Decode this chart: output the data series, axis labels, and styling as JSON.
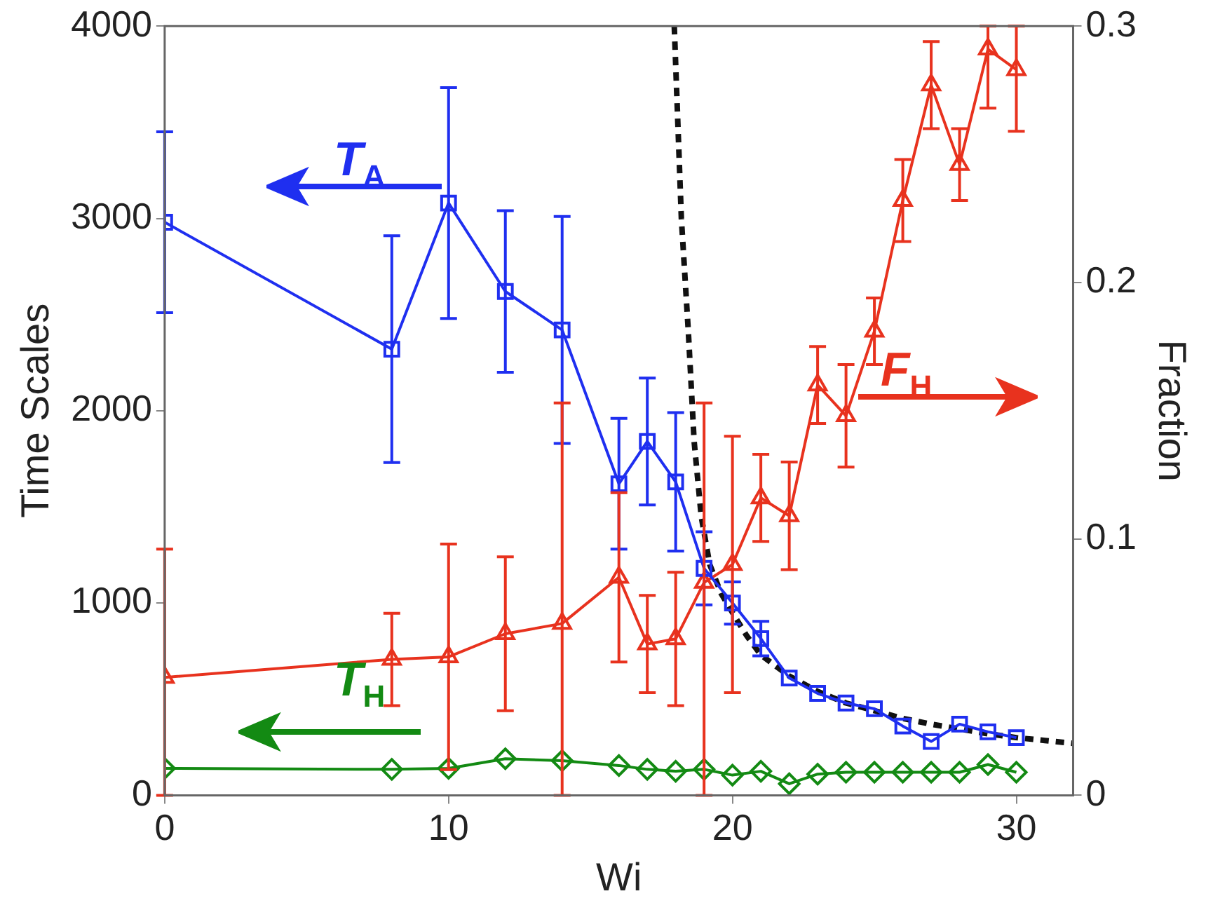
{
  "chart_data": {
    "type": "line",
    "xlabel": "Wi",
    "ylabel": "Time Scales",
    "y2label": "Fraction",
    "xlim": [
      0,
      32
    ],
    "xticks": [
      0,
      10,
      20,
      30
    ],
    "ylim": [
      0,
      4000
    ],
    "yticks": [
      0,
      1000,
      2000,
      3000,
      4000
    ],
    "y2lim": [
      0,
      0.3
    ],
    "y2ticks": [
      0,
      0.1,
      0.2,
      0.3
    ],
    "grid": false,
    "legend": false,
    "annotations": [
      "T$_{A}$",
      "F$_{H}$",
      "T$_{H}$"
    ],
    "series": [
      {
        "color": "#1f2ff0",
        "marker": "square",
        "x": [
          0,
          8,
          10,
          12,
          14,
          16,
          17,
          18,
          19,
          20,
          21,
          22,
          23,
          24,
          25,
          26,
          27,
          28,
          29,
          30
        ],
        "values": [
          2980,
          2320,
          3080,
          2620,
          2420,
          1620,
          1840,
          1630,
          1180,
          1000,
          815,
          610,
          530,
          480,
          450,
          360,
          280,
          370,
          330,
          300
        ],
        "errors": [
          470,
          590,
          600,
          420,
          590,
          340,
          330,
          360,
          190,
          110,
          90,
          null,
          null,
          null,
          null,
          null,
          null,
          null,
          null,
          null
        ]
      },
      {
        "color": "#e8321e",
        "marker": "triangle",
        "axis": "y2",
        "x": [
          0,
          8,
          10,
          12,
          14,
          16,
          17,
          18,
          19,
          20,
          21,
          22,
          23,
          24,
          25,
          26,
          27,
          28,
          29,
          30
        ],
        "values": [
          0.046,
          0.053,
          0.054,
          0.063,
          0.067,
          0.085,
          0.059,
          0.061,
          0.083,
          0.09,
          0.116,
          0.109,
          0.16,
          0.148,
          0.181,
          0.232,
          0.277,
          0.246,
          0.291,
          0.283
        ],
        "errors": [
          [
            0,
            0.096
          ],
          0.018,
          0.044,
          0.03,
          [
            0,
            0.153
          ],
          0.033,
          0.019,
          0.026,
          [
            0,
            0.153
          ],
          0.05,
          0.017,
          0.021,
          0.015,
          0.02,
          0.013,
          0.016,
          0.017,
          0.014,
          [
            0.268,
            0.3
          ],
          [
            0.259,
            0.3
          ]
        ]
      },
      {
        "color": "#138a13",
        "marker": "diamond",
        "x": [
          0,
          8,
          10,
          12,
          14,
          16,
          17,
          18,
          19,
          20,
          21,
          22,
          23,
          24,
          25,
          26,
          27,
          28,
          29,
          30
        ],
        "values": [
          140,
          135,
          140,
          190,
          180,
          155,
          135,
          125,
          135,
          105,
          125,
          60,
          110,
          120,
          120,
          120,
          120,
          120,
          160,
          120
        ]
      },
      {
        "type": "line",
        "color": "#111111",
        "marker": "none",
        "line_style": "dashed",
        "x": [
          17.95,
          18.2,
          18.45,
          18.65,
          18.9,
          19.2,
          19.6,
          20,
          20.5,
          21,
          22,
          23,
          24,
          25,
          26,
          27,
          28,
          29,
          30,
          31,
          32
        ],
        "values": [
          4000,
          3000,
          2400,
          1840,
          1450,
          1200,
          1050,
          950,
          830,
          730,
          620,
          540,
          480,
          440,
          400,
          370,
          345,
          320,
          300,
          285,
          270
        ]
      }
    ]
  }
}
